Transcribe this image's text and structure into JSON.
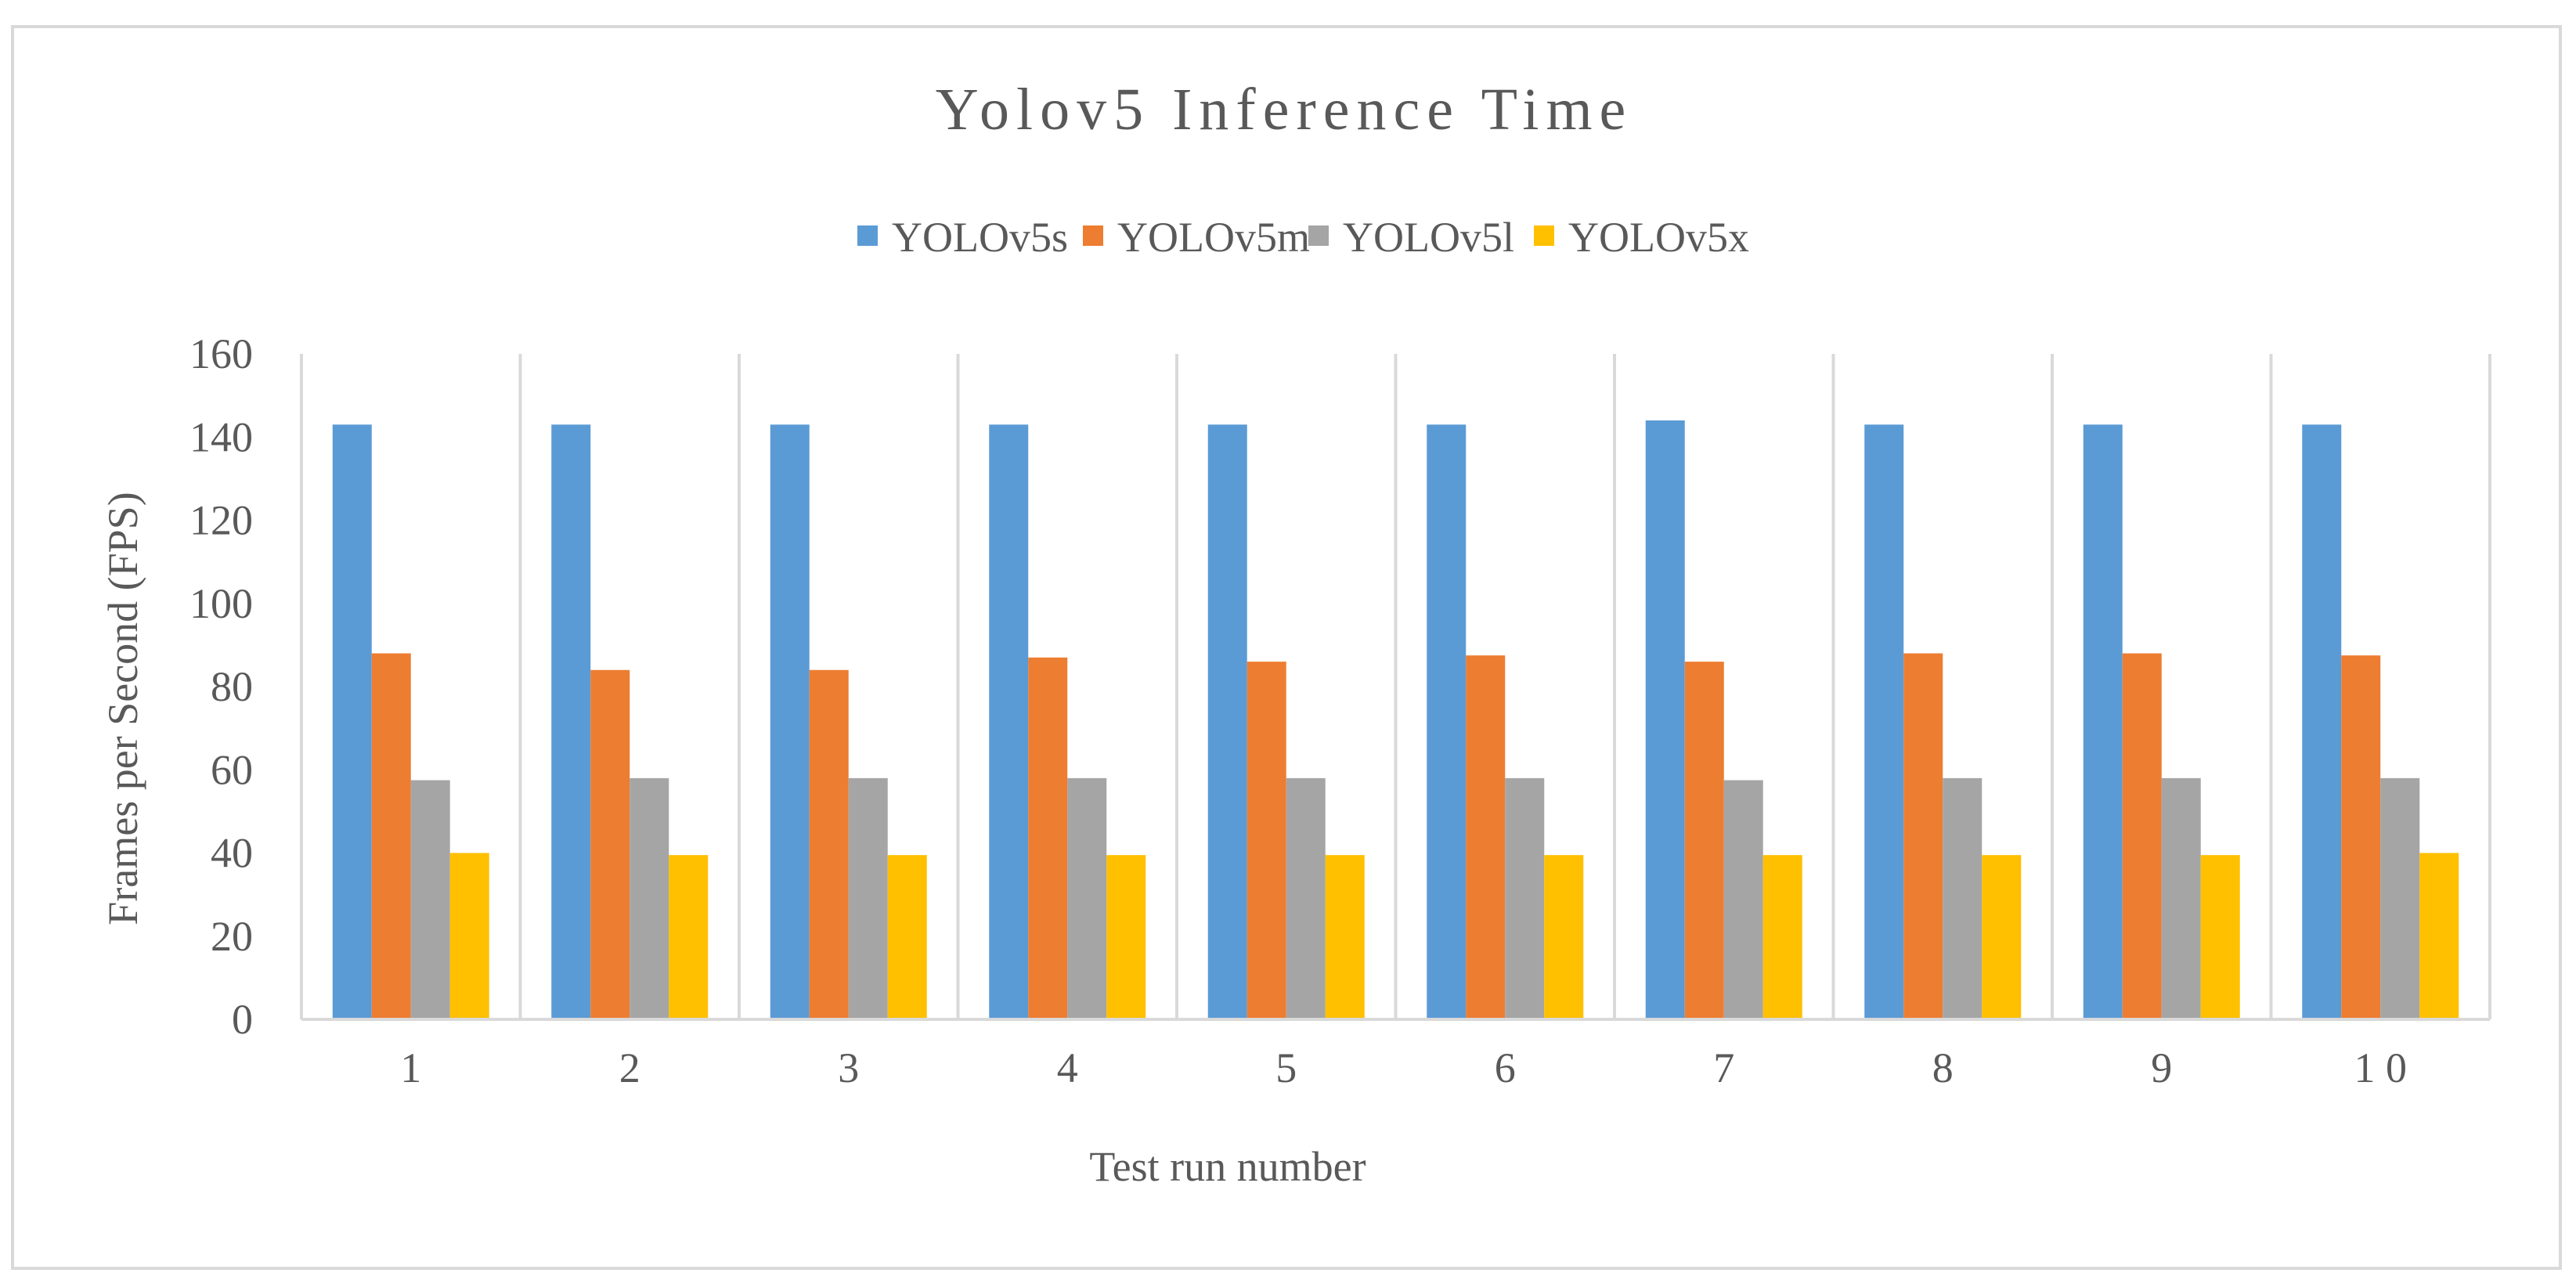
{
  "chart_data": {
    "type": "bar",
    "title": "Yolov5 Inference Time",
    "xlabel": "Test run number",
    "ylabel": "Frames per Second (FPS)",
    "categories": [
      "1",
      "2",
      "3",
      "4",
      "5",
      "6",
      "7",
      "8",
      "9",
      "1 0"
    ],
    "ylim": [
      0,
      160
    ],
    "yticks": [
      0,
      20,
      40,
      60,
      80,
      100,
      120,
      140,
      160
    ],
    "grid": "vertical category separators",
    "legend_position": "top",
    "series": [
      {
        "name": "YOLOv5s",
        "color": "#5b9bd5",
        "values": [
          143,
          143,
          143,
          143,
          143,
          143,
          144,
          143,
          143,
          143
        ]
      },
      {
        "name": "YOLOv5m",
        "color": "#ed7d31",
        "values": [
          88,
          84,
          84,
          87,
          86,
          87.5,
          86,
          88,
          88,
          87.5
        ]
      },
      {
        "name": "YOLOv5l",
        "color": "#a5a5a5",
        "values": [
          57.5,
          58,
          58,
          58,
          58,
          58,
          57.5,
          58,
          58,
          58
        ]
      },
      {
        "name": "YOLOv5x",
        "color": "#ffc000",
        "values": [
          40,
          39.5,
          39.5,
          39.5,
          39.5,
          39.5,
          39.5,
          39.5,
          39.5,
          40
        ]
      }
    ]
  }
}
